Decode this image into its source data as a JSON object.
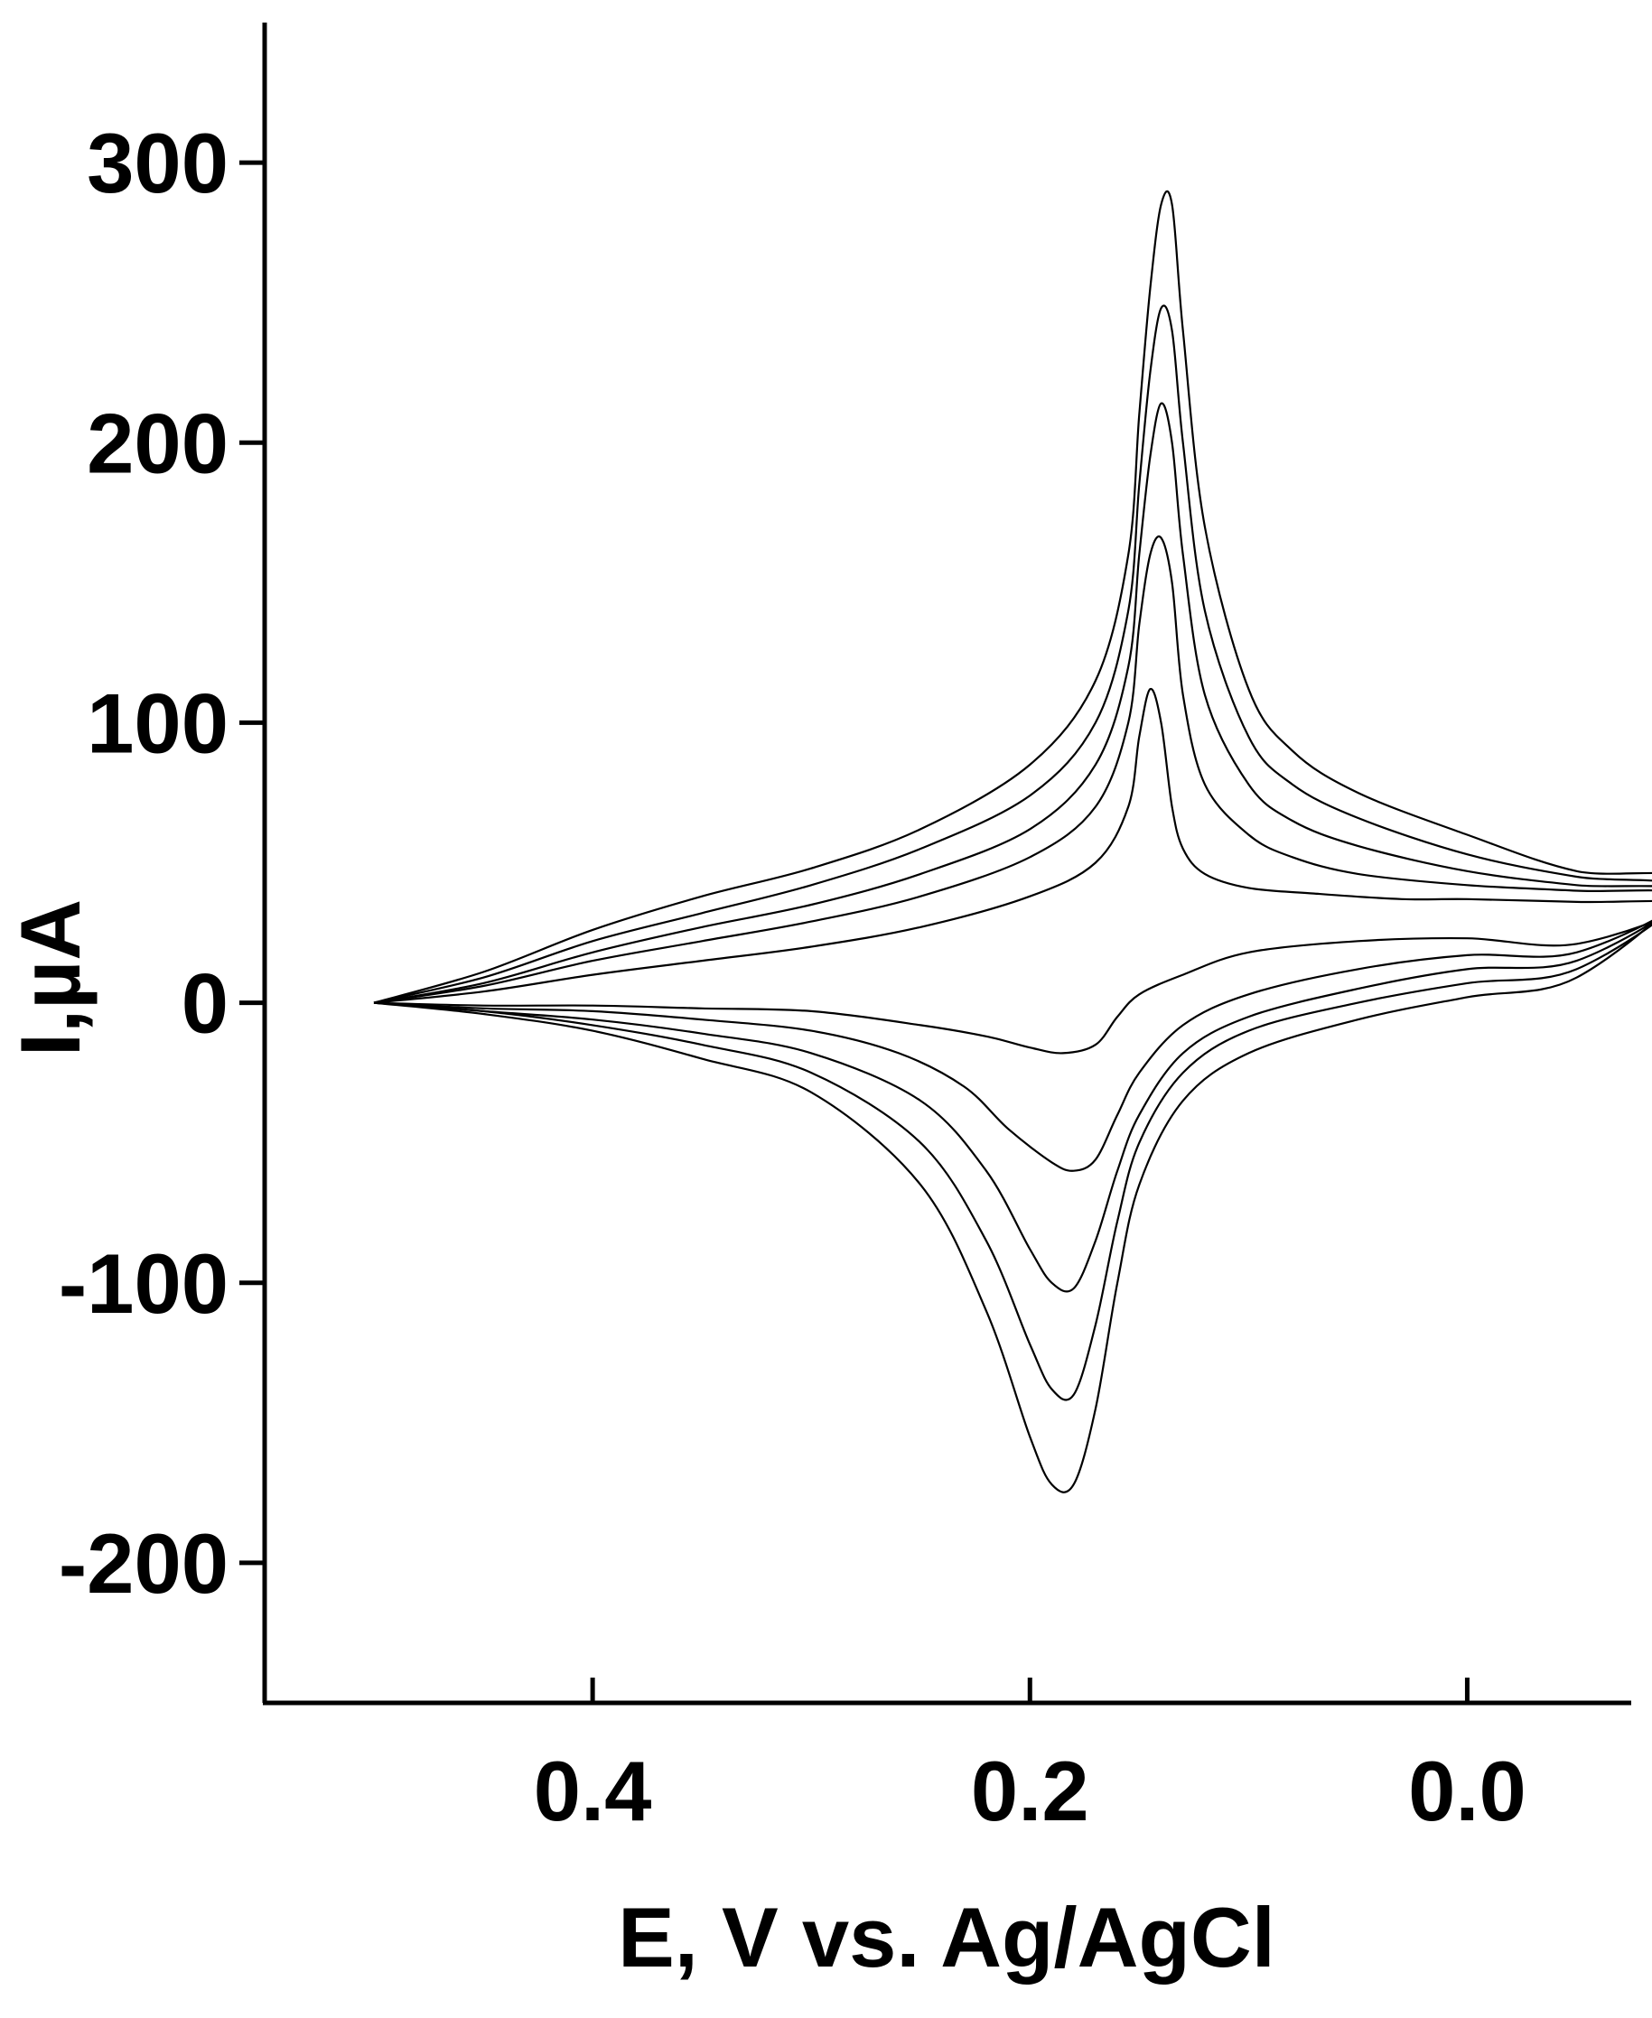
{
  "chart_data": {
    "type": "line",
    "title": "",
    "xlabel": "E, V vs. Ag/AgCl",
    "ylabel": "I,µA",
    "xlim": [
      0.55,
      -0.075
    ],
    "ylim": [
      -250,
      350
    ],
    "x_axis_reversed": true,
    "xticks": [
      "0.4",
      "0.2",
      "0.0"
    ],
    "xtick_values": [
      0.4,
      0.2,
      0.0
    ],
    "yticks": [
      "300",
      "200",
      "100",
      "0",
      "-100",
      "-200"
    ],
    "ytick_values": [
      300,
      200,
      100,
      0,
      -100,
      -200
    ],
    "grid": false,
    "legend": "none",
    "line_color": "#000000",
    "series": [
      {
        "anodic": [
          [
            0.5,
            0
          ],
          [
            0.45,
            4
          ],
          [
            0.4,
            10
          ],
          [
            0.35,
            15
          ],
          [
            0.3,
            20
          ],
          [
            0.25,
            27
          ],
          [
            0.2,
            38
          ],
          [
            0.17,
            50
          ],
          [
            0.155,
            70
          ],
          [
            0.15,
            95
          ],
          [
            0.145,
            112
          ],
          [
            0.14,
            100
          ],
          [
            0.135,
            70
          ],
          [
            0.13,
            55
          ],
          [
            0.12,
            46
          ],
          [
            0.1,
            41
          ],
          [
            0.07,
            39
          ],
          [
            0.03,
            37
          ],
          [
            0.0,
            37
          ],
          [
            -0.05,
            36
          ],
          [
            -0.1,
            35
          ]
        ],
        "cathodic": [
          [
            -0.1,
            18
          ],
          [
            -0.05,
            21
          ],
          [
            0.0,
            23
          ],
          [
            0.05,
            22
          ],
          [
            0.1,
            18
          ],
          [
            0.13,
            10
          ],
          [
            0.15,
            3
          ],
          [
            0.16,
            -5
          ],
          [
            0.17,
            -15
          ],
          [
            0.185,
            -18
          ],
          [
            0.2,
            -16
          ],
          [
            0.22,
            -12
          ],
          [
            0.25,
            -8
          ],
          [
            0.3,
            -3
          ],
          [
            0.35,
            -2
          ],
          [
            0.4,
            -1
          ],
          [
            0.45,
            -1
          ],
          [
            0.5,
            0
          ]
        ]
      },
      {
        "anodic": [
          [
            0.5,
            0
          ],
          [
            0.45,
            6
          ],
          [
            0.4,
            15
          ],
          [
            0.35,
            22
          ],
          [
            0.3,
            29
          ],
          [
            0.25,
            38
          ],
          [
            0.2,
            52
          ],
          [
            0.17,
            70
          ],
          [
            0.155,
            100
          ],
          [
            0.15,
            135
          ],
          [
            0.145,
            160
          ],
          [
            0.14,
            166
          ],
          [
            0.135,
            150
          ],
          [
            0.13,
            110
          ],
          [
            0.12,
            78
          ],
          [
            0.1,
            60
          ],
          [
            0.08,
            52
          ],
          [
            0.05,
            46
          ],
          [
            0.0,
            42
          ],
          [
            -0.05,
            40
          ],
          [
            -0.1,
            38
          ]
        ],
        "cathodic": [
          [
            -0.1,
            15
          ],
          [
            -0.05,
            18
          ],
          [
            0.0,
            17
          ],
          [
            0.05,
            12
          ],
          [
            0.1,
            3
          ],
          [
            0.13,
            -8
          ],
          [
            0.15,
            -25
          ],
          [
            0.16,
            -40
          ],
          [
            0.17,
            -56
          ],
          [
            0.18,
            -60
          ],
          [
            0.19,
            -57
          ],
          [
            0.21,
            -45
          ],
          [
            0.23,
            -30
          ],
          [
            0.26,
            -18
          ],
          [
            0.3,
            -10
          ],
          [
            0.35,
            -6
          ],
          [
            0.4,
            -3
          ],
          [
            0.45,
            -2
          ],
          [
            0.5,
            0
          ]
        ]
      },
      {
        "anodic": [
          [
            0.5,
            0
          ],
          [
            0.45,
            7
          ],
          [
            0.4,
            18
          ],
          [
            0.35,
            27
          ],
          [
            0.3,
            35
          ],
          [
            0.25,
            46
          ],
          [
            0.2,
            62
          ],
          [
            0.17,
            85
          ],
          [
            0.155,
            120
          ],
          [
            0.15,
            160
          ],
          [
            0.145,
            195
          ],
          [
            0.14,
            214
          ],
          [
            0.135,
            200
          ],
          [
            0.13,
            160
          ],
          [
            0.12,
            110
          ],
          [
            0.1,
            78
          ],
          [
            0.08,
            65
          ],
          [
            0.05,
            56
          ],
          [
            0.0,
            47
          ],
          [
            -0.05,
            42
          ],
          [
            -0.1,
            39
          ]
        ],
        "cathodic": [
          [
            -0.1,
            15
          ],
          [
            -0.05,
            15
          ],
          [
            0.0,
            12
          ],
          [
            0.05,
            5
          ],
          [
            0.1,
            -5
          ],
          [
            0.13,
            -18
          ],
          [
            0.15,
            -40
          ],
          [
            0.16,
            -60
          ],
          [
            0.17,
            -85
          ],
          [
            0.18,
            -102
          ],
          [
            0.19,
            -100
          ],
          [
            0.2,
            -88
          ],
          [
            0.22,
            -60
          ],
          [
            0.25,
            -35
          ],
          [
            0.3,
            -18
          ],
          [
            0.35,
            -11
          ],
          [
            0.4,
            -6
          ],
          [
            0.45,
            -3
          ],
          [
            0.5,
            0
          ]
        ]
      },
      {
        "anodic": [
          [
            0.5,
            0
          ],
          [
            0.45,
            9
          ],
          [
            0.4,
            22
          ],
          [
            0.35,
            32
          ],
          [
            0.3,
            42
          ],
          [
            0.25,
            55
          ],
          [
            0.2,
            74
          ],
          [
            0.17,
            100
          ],
          [
            0.155,
            140
          ],
          [
            0.15,
            185
          ],
          [
            0.145,
            225
          ],
          [
            0.14,
            248
          ],
          [
            0.135,
            240
          ],
          [
            0.13,
            200
          ],
          [
            0.12,
            140
          ],
          [
            0.1,
            95
          ],
          [
            0.08,
            78
          ],
          [
            0.05,
            66
          ],
          [
            0.0,
            53
          ],
          [
            -0.05,
            45
          ],
          [
            -0.1,
            40
          ]
        ],
        "cathodic": [
          [
            -0.1,
            18
          ],
          [
            -0.05,
            12
          ],
          [
            0.0,
            7
          ],
          [
            0.05,
            0
          ],
          [
            0.1,
            -10
          ],
          [
            0.13,
            -25
          ],
          [
            0.15,
            -50
          ],
          [
            0.16,
            -78
          ],
          [
            0.17,
            -115
          ],
          [
            0.18,
            -140
          ],
          [
            0.19,
            -138
          ],
          [
            0.2,
            -122
          ],
          [
            0.22,
            -85
          ],
          [
            0.25,
            -50
          ],
          [
            0.3,
            -25
          ],
          [
            0.35,
            -15
          ],
          [
            0.4,
            -8
          ],
          [
            0.45,
            -3
          ],
          [
            0.5,
            0
          ]
        ]
      },
      {
        "anodic": [
          [
            0.5,
            0
          ],
          [
            0.45,
            11
          ],
          [
            0.4,
            26
          ],
          [
            0.35,
            38
          ],
          [
            0.3,
            48
          ],
          [
            0.25,
            62
          ],
          [
            0.2,
            85
          ],
          [
            0.17,
            115
          ],
          [
            0.155,
            160
          ],
          [
            0.15,
            210
          ],
          [
            0.145,
            255
          ],
          [
            0.14,
            285
          ],
          [
            0.135,
            285
          ],
          [
            0.13,
            240
          ],
          [
            0.12,
            170
          ],
          [
            0.1,
            112
          ],
          [
            0.08,
            90
          ],
          [
            0.05,
            75
          ],
          [
            0.0,
            60
          ],
          [
            -0.05,
            47
          ],
          [
            -0.1,
            43
          ]
        ],
        "cathodic": [
          [
            -0.1,
            20
          ],
          [
            -0.05,
            9
          ],
          [
            0.0,
            2
          ],
          [
            0.05,
            -6
          ],
          [
            0.1,
            -18
          ],
          [
            0.13,
            -35
          ],
          [
            0.15,
            -65
          ],
          [
            0.16,
            -100
          ],
          [
            0.17,
            -145
          ],
          [
            0.18,
            -172
          ],
          [
            0.19,
            -172
          ],
          [
            0.2,
            -155
          ],
          [
            0.22,
            -110
          ],
          [
            0.25,
            -65
          ],
          [
            0.3,
            -32
          ],
          [
            0.35,
            -20
          ],
          [
            0.4,
            -10
          ],
          [
            0.45,
            -4
          ],
          [
            0.5,
            0
          ]
        ]
      }
    ]
  }
}
